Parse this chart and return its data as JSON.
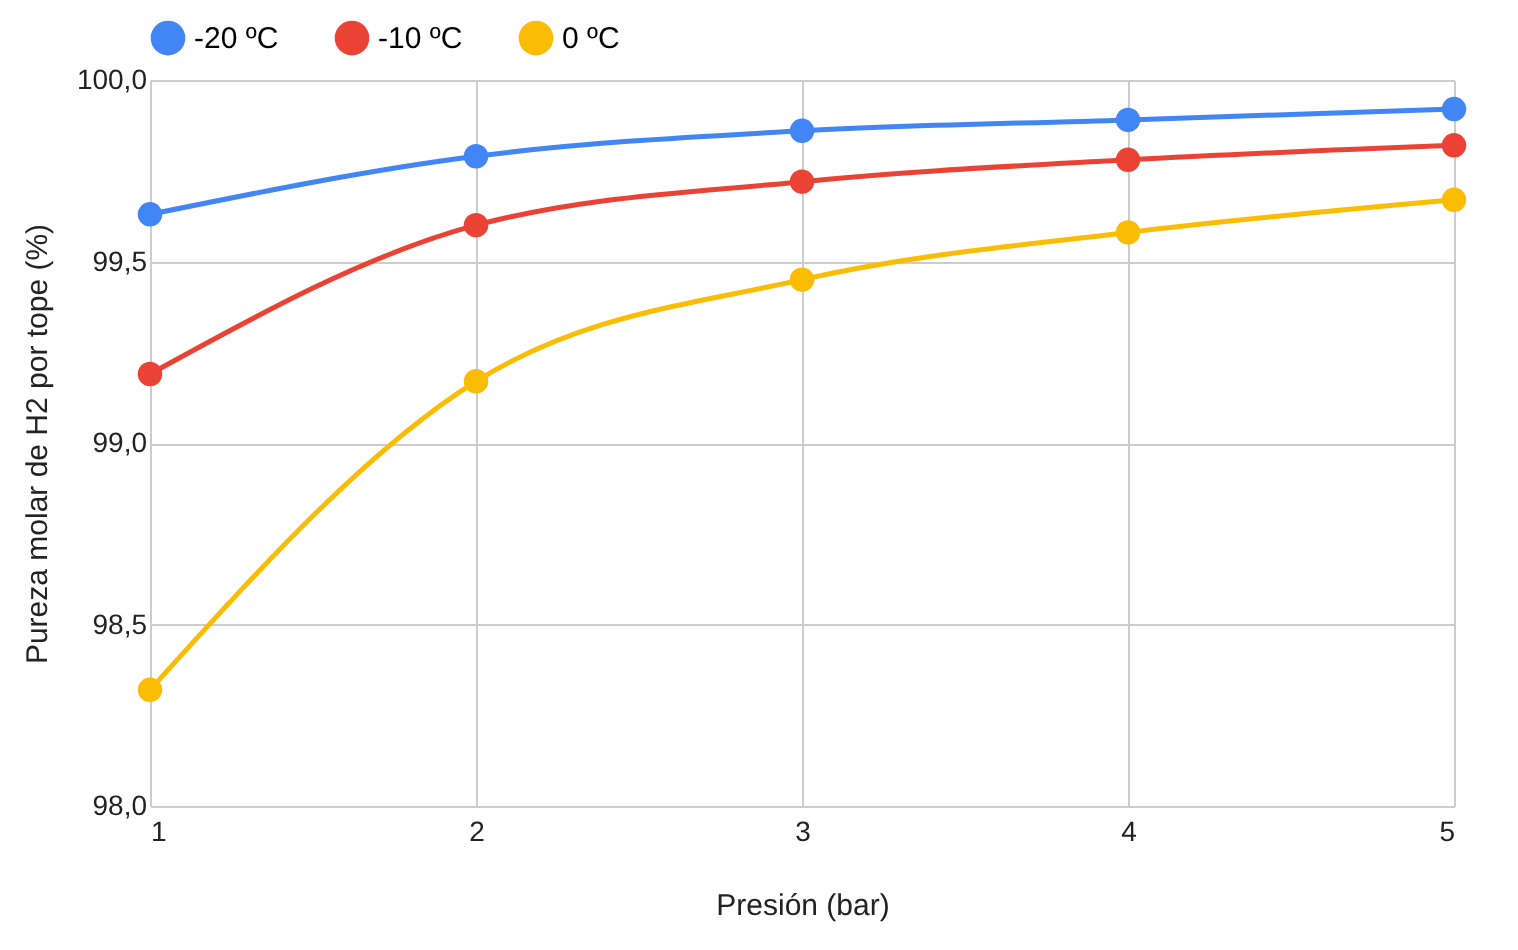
{
  "chart_data": {
    "type": "line",
    "xlabel": "Presión (bar)",
    "ylabel": "Pureza molar de H2 por tope (%)",
    "x": [
      1,
      2,
      3,
      4,
      5
    ],
    "series": [
      {
        "name": "-20 ºC",
        "color": "#4285f4",
        "values": [
          99.63,
          99.79,
          99.86,
          99.89,
          99.92
        ]
      },
      {
        "name": "-10 ºC",
        "color": "#ea4335",
        "values": [
          99.19,
          99.6,
          99.72,
          99.78,
          99.82
        ]
      },
      {
        "name": "0 ºC",
        "color": "#fbbc04",
        "values": [
          98.32,
          99.17,
          99.45,
          99.58,
          99.67
        ]
      }
    ],
    "xlim": [
      1,
      5
    ],
    "xticks": [
      1,
      2,
      3,
      4,
      5
    ],
    "ylim": [
      98,
      100
    ],
    "yticks": [
      {
        "value": 98,
        "label": "98,0"
      },
      {
        "value": 98.5,
        "label": "98,5"
      },
      {
        "value": 99,
        "label": "99,0"
      },
      {
        "value": 99.5,
        "label": "99,5"
      },
      {
        "value": 100,
        "label": "100,0"
      }
    ],
    "grid": true,
    "legend": "top",
    "marker": "circle",
    "line_style": "solid"
  }
}
